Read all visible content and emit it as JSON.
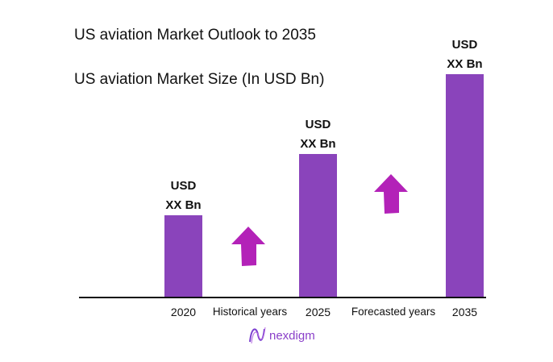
{
  "chart_data": {
    "type": "bar",
    "title": "US aviation Market Outlook to 2035",
    "subtitle": "US aviation Market Size (In USD Bn)",
    "categories": [
      "2020",
      "2025",
      "2035"
    ],
    "values": [
      102,
      178,
      277
    ],
    "value_labels": [
      [
        "USD",
        "XX Bn"
      ],
      [
        "USD",
        "XX Bn"
      ],
      [
        "USD",
        "XX Bn"
      ]
    ],
    "period_labels": [
      "Historical years",
      "Forecasted years"
    ],
    "bar_color": "#8a44bb",
    "arrow_color": "#b322b8",
    "grid": false
  },
  "brand": {
    "name": "nexdigm",
    "color": "#8a3fc9"
  }
}
